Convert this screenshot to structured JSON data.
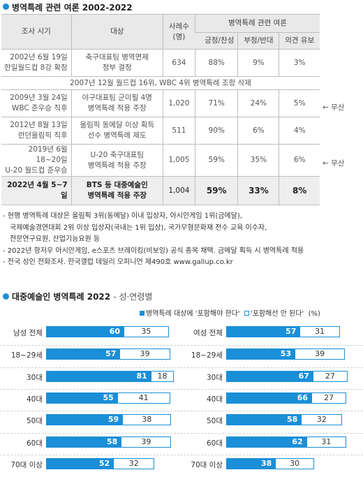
{
  "top": {
    "title": "병역특례 관련 여론 2002-2022",
    "headers": {
      "period": "조사 시기",
      "target": "대상",
      "cases_line1": "사례수",
      "cases_line2": "(명)",
      "opinion": "병역특례 관련 여론",
      "support": "긍정/찬성",
      "oppose": "부정/반대",
      "reserve": "의견 유보"
    },
    "rows": [
      {
        "period1": "2002년 6월 19일",
        "period2": "한일월드컵 8강 확정",
        "target1": "축구대표팀 병역면제",
        "target2": "정부 결정",
        "cases": "634",
        "support": "88%",
        "oppose": "9%",
        "reserve": "3%",
        "note": ""
      },
      {
        "period1": "2009년 3월 24일",
        "period2": "WBC 준우승 직후",
        "target1": "야구대표팀 군미필 4명",
        "target2": "병역특례 적용 주장",
        "cases": "1,020",
        "support": "71%",
        "oppose": "24%",
        "reserve": "5%",
        "note": "← 무산"
      },
      {
        "period1": "2012년 8월 13일",
        "period2": "런던올림픽 직후",
        "target1": "올림픽 동메달 이상 획득",
        "target2": "선수 병역특례 제도",
        "cases": "511",
        "support": "90%",
        "oppose": "6%",
        "reserve": "4%",
        "note": ""
      },
      {
        "period1": "2019년 6월 18~20일",
        "period2": "U-20 월드컵 준우승",
        "target1": "U-20 축구대표팀",
        "target2": "병역특례 적용 주장",
        "cases": "1,005",
        "support": "59%",
        "oppose": "35%",
        "reserve": "6%",
        "note": "← 무산"
      }
    ],
    "event_row": "2007년 12월 월드컵 16위, WBC 4위 병역특례 조항 삭제",
    "final_row": {
      "period": "2022년 4월 5~7일",
      "target1": "BTS 등 대중예술인",
      "target2": "병역특례 적용 주장",
      "cases": "1,004",
      "support": "59%",
      "oppose": "33%",
      "reserve": "8%"
    }
  },
  "footnotes": [
    "- 현행 병역특례 대상은 올림픽 3위(동메달) 이내 입상자, 아시안게임 1위(금메달),",
    "국제예술경연대회 2위 이상 입상자(국내는 1위 입상), 국가무형문화재 전수 교육 이수자,",
    "전문연구요원, 산업기능요원 등",
    "- 2022년 항저우 아시안게임, e스포츠 브레이킹(비보잉) 공식 종목 채택. 금메달 획득 시 병역특례 적용",
    "- 전국 성인 전화조사. 한국갤럽 데일리 오피니언 제490호 www.gallup.co.kr"
  ],
  "bottom": {
    "title": "대중예술인 병역특례 2022",
    "subtitle": "- 성·연령별",
    "legend_fill": "병역특례 대상에 '포함해야 한다'",
    "legend_hollow": "'포함해선 안 된다'",
    "legend_unit": "(%)"
  },
  "chart_data": [
    {
      "type": "bar",
      "categories": [
        "남성 전체",
        "18~29세",
        "30대",
        "40대",
        "50대",
        "60대",
        "70대 이상"
      ],
      "series": [
        {
          "name": "병역특례 대상에 '포함해야 한다'",
          "values": [
            60,
            57,
            81,
            55,
            59,
            58,
            52
          ]
        },
        {
          "name": "'포함해선 안 된다'",
          "values": [
            35,
            39,
            18,
            41,
            38,
            39,
            32
          ]
        }
      ],
      "colors": {
        "include": "#1a8fd8",
        "exclude_border": "#1a8fd8"
      }
    },
    {
      "type": "bar",
      "categories": [
        "여성 전체",
        "18~29세",
        "30대",
        "40대",
        "50대",
        "60대",
        "70대 이상"
      ],
      "series": [
        {
          "name": "병역특례 대상에 '포함해야 한다'",
          "values": [
            57,
            53,
            67,
            66,
            58,
            62,
            38
          ]
        },
        {
          "name": "'포함해선 안 된다'",
          "values": [
            31,
            39,
            27,
            27,
            32,
            31,
            30
          ]
        }
      ],
      "colors": {
        "include": "#1a8fd8",
        "exclude_border": "#1a8fd8"
      }
    }
  ]
}
